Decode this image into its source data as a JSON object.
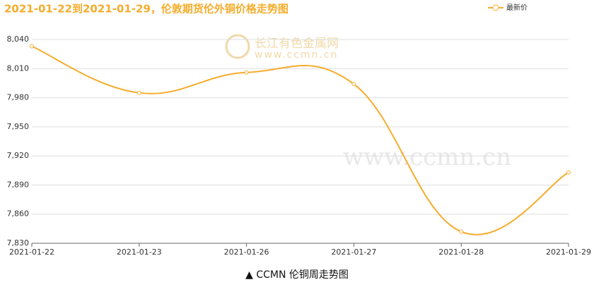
{
  "chart_data": {
    "type": "line",
    "title": "2021-01-22到2021-01-29，伦敦期货伦外铜价格走势图",
    "caption": "▲ CCMN 伦铜周走势图",
    "watermarks": [
      "长江有色金属网",
      "www.ccmn.cn",
      "www.ccmn.cn"
    ],
    "categories": [
      "2021-01-22",
      "2021-01-23",
      "2021-01-26",
      "2021-01-27",
      "2021-01-28",
      "2021-01-29"
    ],
    "series": [
      {
        "name": "最新价",
        "color": "#f5ac2b",
        "values": [
          8033,
          7985,
          8006,
          7994,
          7842,
          7903
        ]
      }
    ],
    "ylim": [
      7830,
      8040
    ],
    "yticks": [
      {
        "value": 7830,
        "label": "7,830"
      },
      {
        "value": 7860,
        "label": "7,860"
      },
      {
        "value": 7890,
        "label": "7,890"
      },
      {
        "value": 7920,
        "label": "7,920"
      },
      {
        "value": 7950,
        "label": "7,950"
      },
      {
        "value": 7980,
        "label": "7,980"
      },
      {
        "value": 8010,
        "label": "8,010"
      },
      {
        "value": 8040,
        "label": "8,040"
      }
    ],
    "grid": true,
    "legend": "top-right"
  }
}
